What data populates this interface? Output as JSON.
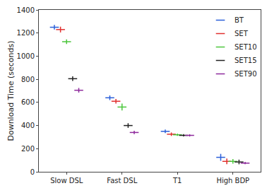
{
  "chart_data": {
    "type": "scatter",
    "y_label": "Download Time (seconds)",
    "categories": [
      "Slow DSL",
      "Fast DSL",
      "T1",
      "High BDP"
    ],
    "series": [
      {
        "name": "BT",
        "color": "#2b5fd9",
        "values": [
          1250,
          640,
          350,
          125
        ],
        "errors": [
          20,
          20,
          15,
          30
        ]
      },
      {
        "name": "SET",
        "color": "#e0302f",
        "values": [
          1230,
          610,
          325,
          90
        ],
        "errors": [
          25,
          20,
          15,
          25
        ]
      },
      {
        "name": "SET10",
        "color": "#4cc63c",
        "values": [
          1125,
          560,
          320,
          90
        ],
        "errors": [
          20,
          30,
          10,
          20
        ]
      },
      {
        "name": "SET15",
        "color": "#222222",
        "values": [
          805,
          400,
          315,
          85
        ],
        "errors": [
          20,
          20,
          10,
          20
        ]
      },
      {
        "name": "SET90",
        "color": "#8e2a9c",
        "values": [
          705,
          340,
          315,
          75
        ],
        "errors": [
          20,
          15,
          10,
          10
        ]
      }
    ],
    "ylim": [
      0,
      1400
    ],
    "yticks": [
      0,
      200,
      400,
      600,
      800,
      1000,
      1200,
      1400
    ],
    "grid": false,
    "legend": "top-right"
  }
}
